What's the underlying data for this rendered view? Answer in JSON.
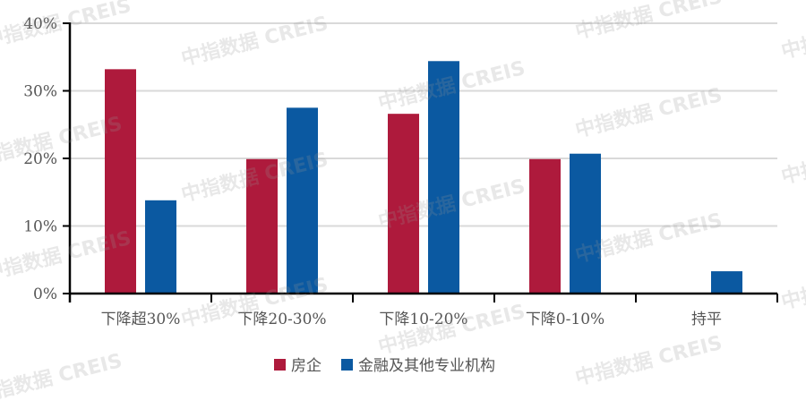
{
  "chart_data": {
    "type": "bar",
    "title": "",
    "xlabel": "",
    "ylabel": "",
    "categories": [
      "下降超30%",
      "下降20-30%",
      "下降10-20%",
      "下降0-10%",
      "持平"
    ],
    "series": [
      {
        "name": "房企",
        "color": "#AE1A3C",
        "values": [
          33.2,
          19.9,
          26.6,
          19.9,
          0
        ]
      },
      {
        "name": "金融及其他专业机构",
        "color": "#0B59A1",
        "values": [
          13.8,
          27.5,
          34.4,
          20.7,
          3.3
        ]
      }
    ],
    "ylim": [
      0,
      40
    ],
    "yticks": [
      0,
      10,
      20,
      30,
      40
    ],
    "ytick_labels": [
      "0%",
      "10%",
      "20%",
      "30%",
      "40%"
    ],
    "grid": "horizontal",
    "legend_position": "bottom"
  },
  "legend": {
    "items": [
      {
        "label": "房企",
        "color": "#AE1A3C"
      },
      {
        "label": "金融及其他专业机构",
        "color": "#0B59A1"
      }
    ]
  },
  "watermark": {
    "text": "中指数据 CREIS"
  }
}
